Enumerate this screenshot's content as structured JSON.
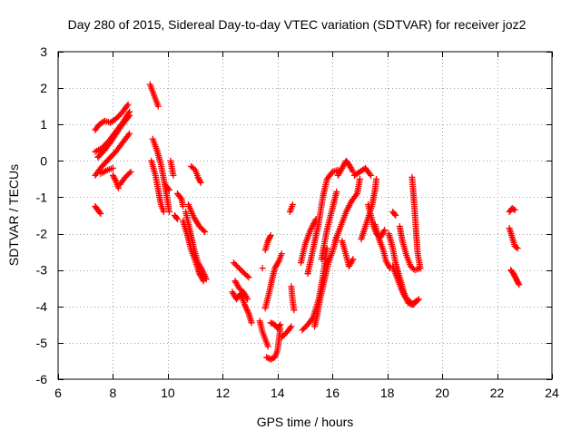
{
  "chart_data": {
    "type": "scatter",
    "title": "Day 280 of 2015, Sidereal Day-to-day VTEC variation (SDTVAR) for receiver joz2",
    "xlabel": "GPS time / hours",
    "ylabel": "SDTVAR / TECUs",
    "xlim": [
      6,
      24
    ],
    "ylim": [
      -6,
      3
    ],
    "grid": true,
    "xticks": [
      6,
      8,
      10,
      12,
      14,
      16,
      18,
      20,
      22,
      24
    ],
    "yticks": [
      -6,
      -5,
      -4,
      -3,
      -2,
      -1,
      0,
      1,
      2,
      3
    ],
    "xtick_labels": [
      "6",
      "8",
      "10",
      "12",
      "14",
      "16",
      "18",
      "20",
      "22",
      "24"
    ],
    "ytick_labels": [
      "-6",
      "-5",
      "-4",
      "-3",
      "-2",
      "-1",
      "0",
      "1",
      "2",
      "3"
    ],
    "series": [
      {
        "name": "SDTVAR",
        "marker": "plus",
        "color": "#ff0000",
        "tracks": [
          [
            [
              7.35,
              -0.4
            ],
            [
              7.6,
              -0.15
            ],
            [
              7.85,
              0.05
            ],
            [
              8.1,
              0.25
            ],
            [
              8.35,
              0.5
            ],
            [
              8.6,
              0.75
            ]
          ],
          [
            [
              7.35,
              0.25
            ],
            [
              7.6,
              0.35
            ],
            [
              7.85,
              0.55
            ],
            [
              8.1,
              0.8
            ],
            [
              8.35,
              1.05
            ],
            [
              8.6,
              1.35
            ]
          ],
          [
            [
              7.35,
              0.85
            ],
            [
              7.5,
              1.0
            ],
            [
              7.7,
              1.1
            ],
            [
              7.9,
              1.05
            ],
            [
              8.1,
              1.15
            ],
            [
              8.3,
              1.3
            ],
            [
              8.55,
              1.55
            ]
          ],
          [
            [
              7.45,
              0.1
            ],
            [
              7.7,
              0.3
            ],
            [
              7.95,
              0.55
            ],
            [
              8.2,
              0.85
            ],
            [
              8.45,
              1.1
            ],
            [
              8.6,
              1.25
            ]
          ],
          [
            [
              7.55,
              -0.35
            ],
            [
              7.8,
              -0.25
            ],
            [
              8.0,
              -0.2
            ]
          ],
          [
            [
              7.35,
              -1.25
            ],
            [
              7.45,
              -1.35
            ],
            [
              7.55,
              -1.45
            ]
          ],
          [
            [
              8.0,
              -0.4
            ],
            [
              8.1,
              -0.55
            ],
            [
              8.2,
              -0.75
            ]
          ],
          [
            [
              8.25,
              -0.65
            ],
            [
              8.45,
              -0.45
            ],
            [
              8.65,
              -0.3
            ]
          ],
          [
            [
              9.35,
              2.1
            ],
            [
              9.45,
              1.9
            ],
            [
              9.55,
              1.7
            ],
            [
              9.65,
              1.5
            ]
          ],
          [
            [
              9.45,
              0.6
            ],
            [
              9.6,
              0.3
            ],
            [
              9.75,
              -0.1
            ],
            [
              9.85,
              -0.5
            ],
            [
              9.95,
              -0.9
            ],
            [
              10.05,
              -1.4
            ]
          ],
          [
            [
              9.4,
              0.0
            ],
            [
              9.55,
              -0.4
            ],
            [
              9.65,
              -0.8
            ],
            [
              9.75,
              -1.2
            ],
            [
              9.85,
              -1.4
            ]
          ],
          [
            [
              10.1,
              0.0
            ],
            [
              10.15,
              -0.2
            ],
            [
              10.2,
              -0.4
            ]
          ],
          [
            [
              9.9,
              -0.65
            ],
            [
              10.05,
              -0.8
            ]
          ],
          [
            [
              10.35,
              -0.9
            ],
            [
              10.5,
              -1.05
            ],
            [
              10.55,
              -1.25
            ]
          ],
          [
            [
              10.85,
              -0.15
            ],
            [
              11.0,
              -0.25
            ],
            [
              11.1,
              -0.45
            ],
            [
              11.2,
              -0.6
            ]
          ],
          [
            [
              10.65,
              -1.4
            ],
            [
              10.8,
              -1.9
            ],
            [
              10.95,
              -2.4
            ],
            [
              11.1,
              -2.8
            ],
            [
              11.25,
              -3.0
            ],
            [
              11.4,
              -3.25
            ]
          ],
          [
            [
              10.55,
              -1.65
            ],
            [
              10.7,
              -2.0
            ],
            [
              10.85,
              -2.45
            ],
            [
              11.0,
              -2.75
            ],
            [
              11.15,
              -3.1
            ],
            [
              11.3,
              -3.3
            ]
          ],
          [
            [
              10.75,
              -1.2
            ],
            [
              10.95,
              -1.55
            ],
            [
              11.15,
              -1.8
            ],
            [
              11.35,
              -1.95
            ]
          ],
          [
            [
              10.25,
              -1.5
            ],
            [
              10.35,
              -1.6
            ]
          ],
          [
            [
              12.35,
              -3.6
            ],
            [
              12.5,
              -3.8
            ],
            [
              12.65,
              -3.65
            ],
            [
              12.8,
              -3.95
            ],
            [
              12.95,
              -4.2
            ],
            [
              13.05,
              -4.45
            ]
          ],
          [
            [
              12.45,
              -3.3
            ],
            [
              12.6,
              -3.5
            ],
            [
              12.75,
              -3.6
            ],
            [
              12.9,
              -3.8
            ]
          ],
          [
            [
              12.4,
              -2.8
            ],
            [
              12.6,
              -2.95
            ],
            [
              12.8,
              -3.1
            ],
            [
              12.95,
              -3.2
            ]
          ],
          [
            [
              13.45,
              -2.95
            ]
          ],
          [
            [
              13.35,
              -4.4
            ],
            [
              13.45,
              -4.7
            ],
            [
              13.55,
              -4.9
            ],
            [
              13.65,
              -5.1
            ]
          ],
          [
            [
              13.6,
              -5.4
            ],
            [
              13.75,
              -5.45
            ],
            [
              13.9,
              -5.4
            ],
            [
              14.0,
              -5.2
            ],
            [
              14.05,
              -4.9
            ],
            [
              14.1,
              -4.6
            ]
          ],
          [
            [
              13.75,
              -4.45
            ],
            [
              13.9,
              -4.5
            ],
            [
              14.0,
              -4.6
            ],
            [
              14.1,
              -4.5
            ]
          ],
          [
            [
              13.55,
              -4.05
            ],
            [
              13.7,
              -3.6
            ],
            [
              13.8,
              -3.25
            ],
            [
              13.9,
              -2.95
            ],
            [
              14.05,
              -2.75
            ],
            [
              14.15,
              -2.55
            ]
          ],
          [
            [
              13.55,
              -2.45
            ],
            [
              13.65,
              -2.2
            ],
            [
              13.75,
              -2.05
            ]
          ],
          [
            [
              14.15,
              -4.85
            ],
            [
              14.35,
              -4.7
            ],
            [
              14.5,
              -4.55
            ]
          ],
          [
            [
              14.5,
              -3.45
            ],
            [
              14.55,
              -3.85
            ],
            [
              14.6,
              -4.1
            ]
          ],
          [
            [
              14.45,
              -1.4
            ],
            [
              14.55,
              -1.2
            ]
          ],
          [
            [
              14.85,
              -2.8
            ],
            [
              15.0,
              -2.3
            ],
            [
              15.2,
              -1.9
            ],
            [
              15.4,
              -1.6
            ]
          ],
          [
            [
              14.9,
              -4.65
            ],
            [
              15.1,
              -4.5
            ],
            [
              15.3,
              -4.3
            ],
            [
              15.5,
              -3.8
            ],
            [
              15.65,
              -3.2
            ],
            [
              15.8,
              -2.4
            ]
          ],
          [
            [
              15.1,
              -3.1
            ],
            [
              15.3,
              -2.4
            ],
            [
              15.5,
              -1.7
            ],
            [
              15.65,
              -1.0
            ],
            [
              15.8,
              -0.5
            ],
            [
              16.0,
              -0.3
            ],
            [
              16.2,
              -0.25
            ]
          ],
          [
            [
              15.35,
              -4.55
            ],
            [
              15.45,
              -4.2
            ],
            [
              15.55,
              -3.8
            ],
            [
              15.7,
              -3.3
            ],
            [
              15.85,
              -2.8
            ],
            [
              16.0,
              -2.5
            ],
            [
              16.15,
              -2.1
            ]
          ],
          [
            [
              15.6,
              -2.7
            ],
            [
              15.8,
              -1.9
            ],
            [
              16.0,
              -1.3
            ],
            [
              16.15,
              -0.85
            ]
          ],
          [
            [
              16.2,
              -0.4
            ],
            [
              16.35,
              -0.2
            ],
            [
              16.5,
              0.0
            ],
            [
              16.6,
              -0.1
            ],
            [
              16.75,
              -0.3
            ]
          ],
          [
            [
              16.1,
              -2.2
            ],
            [
              16.3,
              -1.8
            ],
            [
              16.5,
              -1.4
            ],
            [
              16.7,
              -1.1
            ],
            [
              16.9,
              -0.9
            ],
            [
              17.0,
              -0.5
            ]
          ],
          [
            [
              16.35,
              -2.2
            ],
            [
              16.5,
              -2.6
            ],
            [
              16.6,
              -2.9
            ],
            [
              16.75,
              -2.7
            ]
          ],
          [
            [
              16.8,
              -0.4
            ],
            [
              17.0,
              -0.3
            ],
            [
              17.2,
              -0.2
            ],
            [
              17.4,
              -0.4
            ]
          ],
          [
            [
              17.05,
              -2.15
            ],
            [
              17.2,
              -1.8
            ],
            [
              17.35,
              -1.45
            ],
            [
              17.45,
              -1.2
            ],
            [
              17.55,
              -0.8
            ],
            [
              17.6,
              -0.5
            ]
          ],
          [
            [
              17.3,
              -1.2
            ],
            [
              17.4,
              -1.5
            ],
            [
              17.5,
              -1.8
            ],
            [
              17.6,
              -2.0
            ],
            [
              17.75,
              -2.1
            ],
            [
              17.9,
              -1.9
            ]
          ],
          [
            [
              17.55,
              -1.75
            ],
            [
              17.7,
              -2.15
            ],
            [
              17.85,
              -2.45
            ],
            [
              17.95,
              -2.75
            ],
            [
              18.1,
              -2.95
            ]
          ],
          [
            [
              18.05,
              -2.0
            ],
            [
              18.2,
              -2.4
            ],
            [
              18.3,
              -2.8
            ],
            [
              18.45,
              -3.2
            ],
            [
              18.6,
              -3.6
            ],
            [
              18.75,
              -3.9
            ],
            [
              18.9,
              -3.95
            ],
            [
              19.05,
              -3.85
            ]
          ],
          [
            [
              18.2,
              -2.9
            ],
            [
              18.35,
              -3.2
            ],
            [
              18.5,
              -3.5
            ],
            [
              18.65,
              -3.75
            ],
            [
              18.8,
              -3.85
            ],
            [
              18.95,
              -3.95
            ],
            [
              19.15,
              -3.8
            ]
          ],
          [
            [
              18.45,
              -1.8
            ],
            [
              18.55,
              -2.2
            ],
            [
              18.7,
              -2.6
            ],
            [
              18.85,
              -2.9
            ],
            [
              19.0,
              -3.0
            ],
            [
              19.2,
              -2.95
            ]
          ],
          [
            [
              18.9,
              -0.45
            ],
            [
              18.95,
              -0.9
            ],
            [
              19.0,
              -1.4
            ],
            [
              19.05,
              -1.95
            ],
            [
              19.1,
              -2.5
            ],
            [
              19.2,
              -2.95
            ]
          ],
          [
            [
              18.2,
              -1.4
            ],
            [
              18.3,
              -1.5
            ]
          ],
          [
            [
              22.45,
              -1.4
            ],
            [
              22.55,
              -1.3
            ],
            [
              22.65,
              -1.35
            ]
          ],
          [
            [
              22.45,
              -1.85
            ],
            [
              22.55,
              -2.1
            ],
            [
              22.65,
              -2.35
            ],
            [
              22.75,
              -2.4
            ]
          ],
          [
            [
              22.5,
              -3.0
            ],
            [
              22.6,
              -3.1
            ],
            [
              22.7,
              -3.25
            ],
            [
              22.8,
              -3.4
            ]
          ]
        ]
      }
    ]
  }
}
